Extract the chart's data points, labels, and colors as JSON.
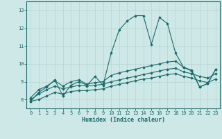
{
  "xlabel": "Humidex (Indice chaleur)",
  "bg_color": "#cde8e7",
  "grid_color": "#b8d8d6",
  "line_color": "#1a6b6a",
  "xlim": [
    -0.5,
    23.5
  ],
  "ylim": [
    7.5,
    13.5
  ],
  "yticks": [
    8,
    9,
    10,
    11,
    12,
    13
  ],
  "xticks": [
    0,
    1,
    2,
    3,
    4,
    5,
    6,
    7,
    8,
    9,
    10,
    11,
    12,
    13,
    14,
    15,
    16,
    17,
    18,
    19,
    20,
    21,
    22,
    23
  ],
  "series": [
    {
      "x": [
        0,
        1,
        2,
        3,
        4,
        5,
        6,
        7,
        8,
        9,
        10,
        11,
        12,
        13,
        14,
        15,
        16,
        17,
        18,
        19,
        20,
        21,
        22,
        23
      ],
      "y": [
        7.9,
        8.4,
        8.7,
        9.1,
        8.2,
        8.8,
        9.0,
        8.8,
        9.3,
        8.8,
        10.6,
        11.9,
        12.4,
        12.7,
        12.7,
        11.1,
        12.6,
        12.25,
        10.6,
        9.8,
        9.6,
        8.7,
        8.9,
        9.7
      ]
    },
    {
      "x": [
        0,
        1,
        2,
        3,
        4,
        5,
        6,
        7,
        8,
        9,
        10,
        11,
        12,
        13,
        14,
        15,
        16,
        17,
        18,
        19,
        20,
        21,
        22,
        23
      ],
      "y": [
        8.1,
        8.55,
        8.75,
        9.05,
        8.75,
        9.0,
        9.1,
        8.85,
        8.95,
        9.0,
        9.35,
        9.5,
        9.6,
        9.7,
        9.8,
        9.9,
        10.0,
        10.1,
        10.15,
        9.8,
        9.65,
        8.7,
        8.9,
        9.7
      ]
    },
    {
      "x": [
        0,
        1,
        2,
        3,
        4,
        5,
        6,
        7,
        8,
        9,
        10,
        11,
        12,
        13,
        14,
        15,
        16,
        17,
        18,
        19,
        20,
        21,
        22,
        23
      ],
      "y": [
        8.0,
        8.3,
        8.55,
        8.75,
        8.6,
        8.7,
        8.8,
        8.75,
        8.8,
        8.85,
        9.0,
        9.1,
        9.2,
        9.3,
        9.4,
        9.5,
        9.6,
        9.7,
        9.75,
        9.55,
        9.45,
        9.3,
        9.2,
        9.45
      ]
    },
    {
      "x": [
        0,
        1,
        2,
        3,
        4,
        5,
        6,
        7,
        8,
        9,
        10,
        11,
        12,
        13,
        14,
        15,
        16,
        17,
        18,
        19,
        20,
        21,
        22,
        23
      ],
      "y": [
        7.9,
        8.0,
        8.2,
        8.4,
        8.3,
        8.45,
        8.5,
        8.5,
        8.55,
        8.6,
        8.75,
        8.85,
        8.95,
        9.05,
        9.15,
        9.2,
        9.3,
        9.4,
        9.45,
        9.3,
        9.2,
        9.05,
        8.95,
        9.15
      ]
    }
  ]
}
